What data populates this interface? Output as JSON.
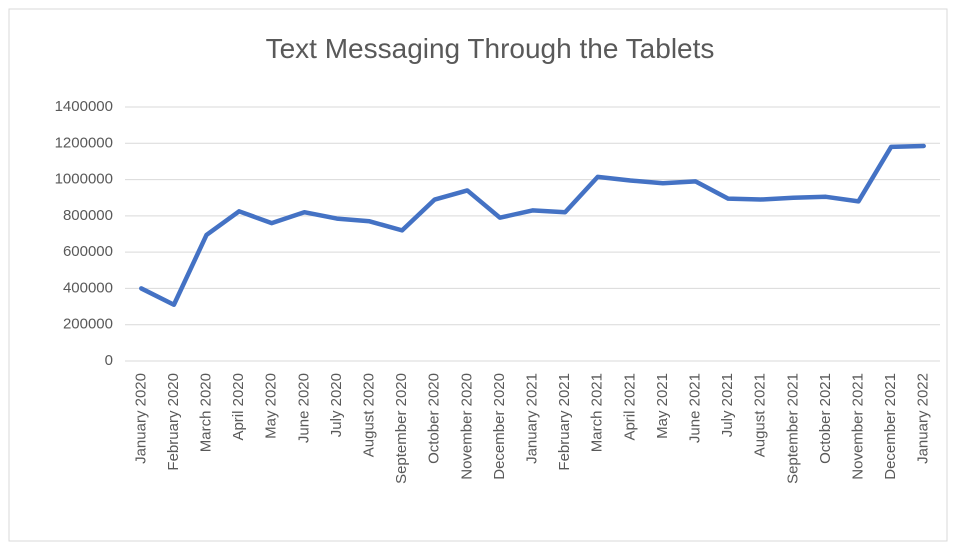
{
  "chart_data": {
    "type": "line",
    "title": "Text Messaging Through the Tablets",
    "categories": [
      "January 2020",
      "February 2020",
      "March 2020",
      "April 2020",
      "May 2020",
      "June 2020",
      "July 2020",
      "August 2020",
      "September 2020",
      "October 2020",
      "November 2020",
      "December 2020",
      "January 2021",
      "February 2021",
      "March 2021",
      "April 2021",
      "May 2021",
      "June 2021",
      "July 2021",
      "August 2021",
      "September 2021",
      "October 2021",
      "November 2021",
      "December 2021",
      "January 2022"
    ],
    "values": [
      400000,
      310000,
      695000,
      825000,
      760000,
      820000,
      785000,
      770000,
      720000,
      890000,
      940000,
      790000,
      830000,
      820000,
      1015000,
      995000,
      980000,
      990000,
      895000,
      890000,
      900000,
      905000,
      880000,
      1180000,
      1185000
    ],
    "color": "#4472c4",
    "ylim": [
      0,
      1400000
    ],
    "yticks": [
      0,
      200000,
      400000,
      600000,
      800000,
      1000000,
      1200000,
      1400000
    ],
    "grid": true
  }
}
